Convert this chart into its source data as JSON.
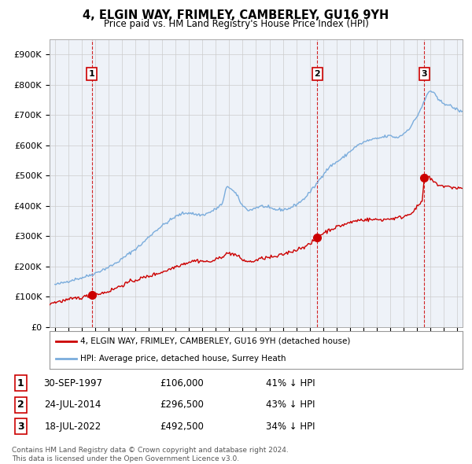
{
  "title": "4, ELGIN WAY, FRIMLEY, CAMBERLEY, GU16 9YH",
  "subtitle": "Price paid vs. HM Land Registry's House Price Index (HPI)",
  "ylim": [
    0,
    950000
  ],
  "yticks": [
    0,
    100000,
    200000,
    300000,
    400000,
    500000,
    600000,
    700000,
    800000,
    900000
  ],
  "ytick_labels": [
    "£0",
    "£100K",
    "£200K",
    "£300K",
    "£400K",
    "£500K",
    "£600K",
    "£700K",
    "£800K",
    "£900K"
  ],
  "xlim_start": 1994.6,
  "xlim_end": 2025.4,
  "grid_color": "#cccccc",
  "bg_color": "#eef2f8",
  "sale_color": "#cc0000",
  "hpi_color": "#7aacdc",
  "sale_dates": [
    1997.75,
    2014.56,
    2022.54
  ],
  "sale_prices": [
    106000,
    296500,
    492500
  ],
  "sale_labels": [
    "1",
    "2",
    "3"
  ],
  "legend_sale_label": "4, ELGIN WAY, FRIMLEY, CAMBERLEY, GU16 9YH (detached house)",
  "legend_hpi_label": "HPI: Average price, detached house, Surrey Heath",
  "transaction_rows": [
    {
      "num": "1",
      "date": "30-SEP-1997",
      "price": "£106,000",
      "note": "41% ↓ HPI"
    },
    {
      "num": "2",
      "date": "24-JUL-2014",
      "price": "£296,500",
      "note": "43% ↓ HPI"
    },
    {
      "num": "3",
      "date": "18-JUL-2022",
      "price": "£492,500",
      "note": "34% ↓ HPI"
    }
  ],
  "footer_line1": "Contains HM Land Registry data © Crown copyright and database right 2024.",
  "footer_line2": "This data is licensed under the Open Government Licence v3.0.",
  "hpi_waypoints": [
    [
      1995.0,
      140000
    ],
    [
      1995.5,
      145000
    ],
    [
      1996.0,
      152000
    ],
    [
      1996.5,
      158000
    ],
    [
      1997.0,
      163000
    ],
    [
      1997.5,
      170000
    ],
    [
      1998.0,
      178000
    ],
    [
      1998.5,
      188000
    ],
    [
      1999.0,
      198000
    ],
    [
      1999.5,
      210000
    ],
    [
      2000.0,
      225000
    ],
    [
      2000.5,
      242000
    ],
    [
      2001.0,
      258000
    ],
    [
      2001.5,
      275000
    ],
    [
      2002.0,
      298000
    ],
    [
      2002.5,
      318000
    ],
    [
      2003.0,
      335000
    ],
    [
      2003.5,
      350000
    ],
    [
      2004.0,
      365000
    ],
    [
      2004.5,
      375000
    ],
    [
      2005.0,
      378000
    ],
    [
      2005.5,
      372000
    ],
    [
      2006.0,
      370000
    ],
    [
      2006.5,
      378000
    ],
    [
      2007.0,
      390000
    ],
    [
      2007.5,
      408000
    ],
    [
      2007.83,
      468000
    ],
    [
      2008.0,
      462000
    ],
    [
      2008.5,
      440000
    ],
    [
      2009.0,
      400000
    ],
    [
      2009.5,
      385000
    ],
    [
      2010.0,
      395000
    ],
    [
      2010.5,
      400000
    ],
    [
      2011.0,
      392000
    ],
    [
      2011.5,
      388000
    ],
    [
      2012.0,
      388000
    ],
    [
      2012.5,
      392000
    ],
    [
      2013.0,
      405000
    ],
    [
      2013.5,
      420000
    ],
    [
      2014.0,
      445000
    ],
    [
      2014.5,
      472000
    ],
    [
      2015.0,
      505000
    ],
    [
      2015.5,
      530000
    ],
    [
      2016.0,
      545000
    ],
    [
      2016.5,
      560000
    ],
    [
      2017.0,
      580000
    ],
    [
      2017.5,
      598000
    ],
    [
      2018.0,
      610000
    ],
    [
      2018.5,
      618000
    ],
    [
      2019.0,
      622000
    ],
    [
      2019.5,
      628000
    ],
    [
      2020.0,
      632000
    ],
    [
      2020.5,
      625000
    ],
    [
      2021.0,
      638000
    ],
    [
      2021.5,
      660000
    ],
    [
      2022.0,
      695000
    ],
    [
      2022.5,
      740000
    ],
    [
      2022.83,
      775000
    ],
    [
      2023.0,
      780000
    ],
    [
      2023.25,
      775000
    ],
    [
      2023.5,
      755000
    ],
    [
      2023.75,
      745000
    ],
    [
      2024.0,
      740000
    ],
    [
      2024.5,
      730000
    ],
    [
      2025.0,
      718000
    ],
    [
      2025.4,
      710000
    ]
  ],
  "red_waypoints": [
    [
      1994.6,
      78000
    ],
    [
      1995.0,
      82000
    ],
    [
      1995.5,
      86000
    ],
    [
      1996.0,
      90000
    ],
    [
      1996.5,
      95000
    ],
    [
      1997.0,
      98000
    ],
    [
      1997.75,
      106000
    ],
    [
      1998.0,
      108000
    ],
    [
      1998.5,
      112000
    ],
    [
      1999.0,
      118000
    ],
    [
      1999.5,
      128000
    ],
    [
      2000.0,
      138000
    ],
    [
      2000.5,
      148000
    ],
    [
      2001.0,
      155000
    ],
    [
      2001.5,
      162000
    ],
    [
      2002.0,
      168000
    ],
    [
      2002.5,
      175000
    ],
    [
      2003.0,
      182000
    ],
    [
      2003.5,
      190000
    ],
    [
      2004.0,
      200000
    ],
    [
      2004.5,
      208000
    ],
    [
      2005.0,
      215000
    ],
    [
      2005.5,
      220000
    ],
    [
      2006.0,
      218000
    ],
    [
      2006.5,
      215000
    ],
    [
      2007.0,
      222000
    ],
    [
      2007.5,
      235000
    ],
    [
      2008.0,
      245000
    ],
    [
      2008.5,
      238000
    ],
    [
      2009.0,
      222000
    ],
    [
      2009.5,
      215000
    ],
    [
      2010.0,
      220000
    ],
    [
      2010.5,
      228000
    ],
    [
      2011.0,
      230000
    ],
    [
      2011.5,
      232000
    ],
    [
      2012.0,
      240000
    ],
    [
      2012.5,
      248000
    ],
    [
      2013.0,
      255000
    ],
    [
      2013.5,
      265000
    ],
    [
      2014.0,
      272000
    ],
    [
      2014.56,
      296500
    ],
    [
      2015.0,
      310000
    ],
    [
      2015.5,
      322000
    ],
    [
      2016.0,
      330000
    ],
    [
      2016.5,
      338000
    ],
    [
      2017.0,
      345000
    ],
    [
      2017.5,
      352000
    ],
    [
      2018.0,
      355000
    ],
    [
      2018.5,
      355000
    ],
    [
      2019.0,
      355000
    ],
    [
      2019.5,
      355000
    ],
    [
      2020.0,
      358000
    ],
    [
      2020.5,
      360000
    ],
    [
      2021.0,
      365000
    ],
    [
      2021.5,
      375000
    ],
    [
      2022.0,
      395000
    ],
    [
      2022.4,
      418000
    ],
    [
      2022.54,
      492500
    ],
    [
      2022.7,
      500000
    ],
    [
      2022.9,
      495000
    ],
    [
      2023.0,
      488000
    ],
    [
      2023.25,
      480000
    ],
    [
      2023.5,
      472000
    ],
    [
      2023.75,
      468000
    ],
    [
      2024.0,
      465000
    ],
    [
      2024.5,
      462000
    ],
    [
      2025.0,
      460000
    ],
    [
      2025.4,
      458000
    ]
  ]
}
